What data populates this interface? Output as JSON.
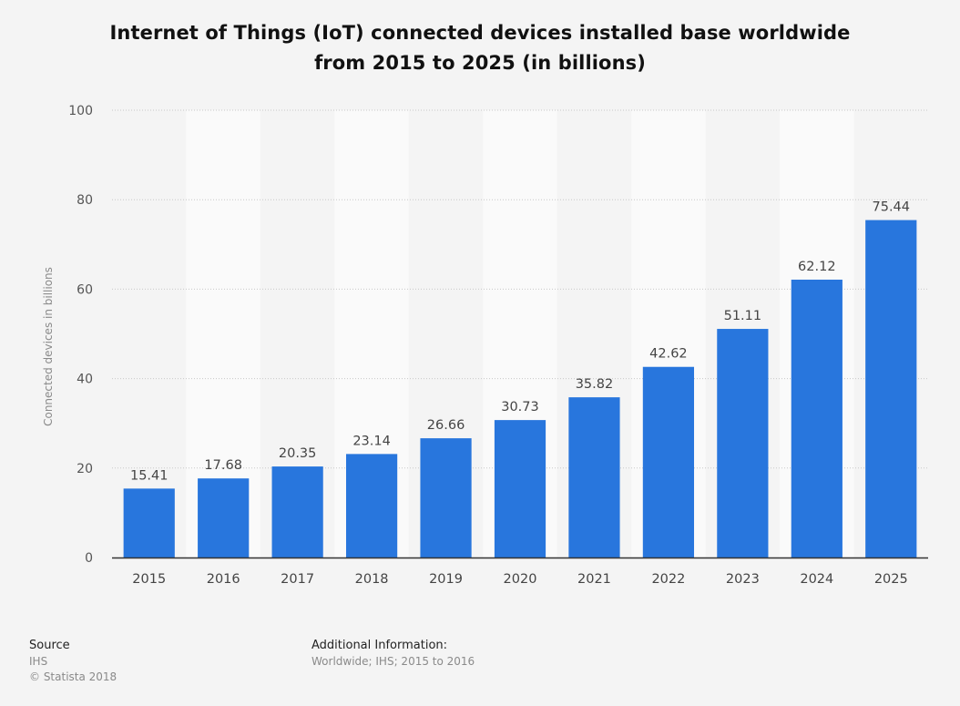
{
  "title_line1": "Internet of Things (IoT) connected devices installed base worldwide",
  "title_line2": "from 2015 to 2025 (in billions)",
  "chart_data": {
    "type": "bar",
    "title": "Internet of Things (IoT) connected devices installed base worldwide from 2015 to 2025 (in billions)",
    "categories": [
      "2015",
      "2016",
      "2017",
      "2018",
      "2019",
      "2020",
      "2021",
      "2022",
      "2023",
      "2024",
      "2025"
    ],
    "values": [
      15.41,
      17.68,
      20.35,
      23.14,
      26.66,
      30.73,
      35.82,
      42.62,
      51.11,
      62.12,
      75.44
    ],
    "value_labels": [
      "15.41",
      "17.68",
      "20.35",
      "23.14",
      "26.66",
      "30.73",
      "35.82",
      "42.62",
      "51.11",
      "62.12",
      "75.44"
    ],
    "ylabel": "Connected devices in billions",
    "xlabel": "",
    "ylim": [
      0,
      100
    ],
    "yticks": [
      0,
      20,
      40,
      60,
      80,
      100
    ],
    "ytick_labels": [
      "0",
      "20",
      "40",
      "60",
      "80",
      "100"
    ],
    "grid": true,
    "bar_color": "#2876dd"
  },
  "footer": {
    "source_heading": "Source",
    "source_name": "IHS",
    "copyright": "© Statista 2018",
    "info_heading": "Additional Information:",
    "info_text": "Worldwide; IHS; 2015 to 2016"
  }
}
